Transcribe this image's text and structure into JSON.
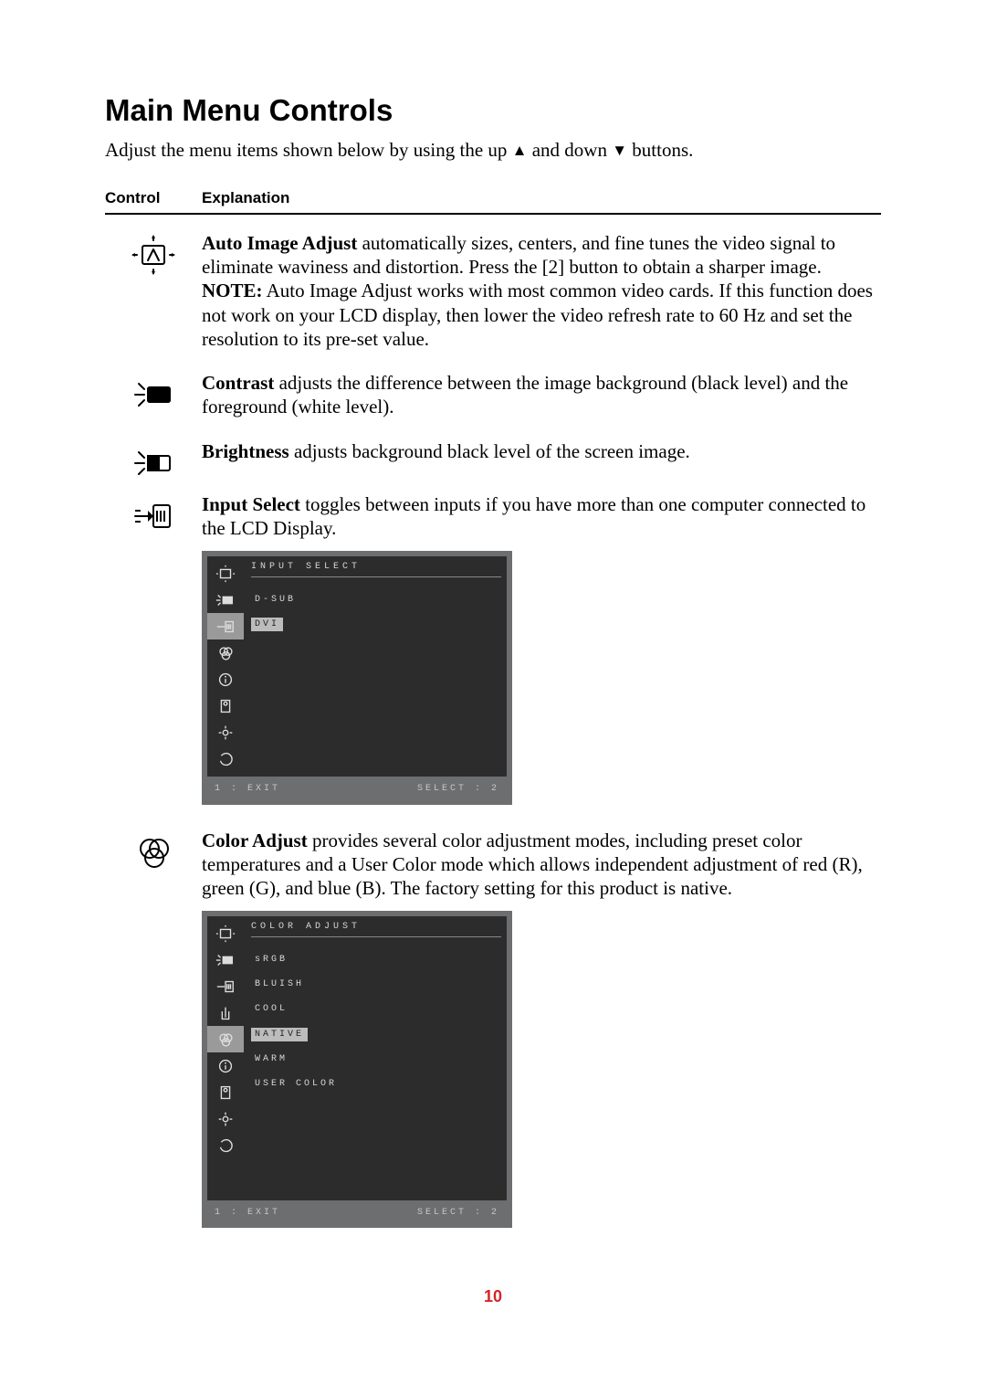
{
  "heading": "Main Menu Controls",
  "intro_before_up": "Adjust the menu items shown below by using the up ",
  "intro_between": " and down ",
  "intro_after": " buttons.",
  "headers": {
    "col1": "Control",
    "col2": "Explanation"
  },
  "page_number": "10",
  "colors": {
    "page_bg": "#ffffff",
    "text": "#000000",
    "page_num": "#d22626",
    "osd_outer": "#6d6e70",
    "osd_inner": "#2c2c2c",
    "osd_text": "#d8d8d8",
    "osd_active_icon_bg": "#9a9a9a",
    "osd_selected_bg": "#bcbcbc",
    "osd_selected_text": "#222222"
  },
  "sections": {
    "auto_image": {
      "label": "Auto Image Adjust",
      "text": " automatically sizes, centers, and fine tunes the video signal to eliminate waviness and distortion. Press the [2] button to obtain a sharper image.",
      "note_label": "NOTE:",
      "note_text": " Auto Image Adjust works with most common video cards. If this function does not work on your LCD display, then lower the video refresh rate to 60 Hz and set the resolution to its pre-set value."
    },
    "contrast": {
      "label": "Contrast",
      "text": " adjusts the difference between the image background  (black level) and the foreground (white level)."
    },
    "brightness": {
      "label": "Brightness",
      "text": " adjusts background black level of the screen image."
    },
    "input_select": {
      "label": "Input Select",
      "text": " toggles between inputs if you have more than one computer connected to the LCD Display."
    },
    "color_adjust": {
      "label": "Color Adjust",
      "text": " provides several color adjustment modes, including preset color temperatures and a User Color mode which allows independent adjustment of red (R), green (G), and blue (B). The factory setting for this product is native."
    }
  },
  "osd1": {
    "title": "INPUT SELECT",
    "active_index": 2,
    "items": [
      {
        "label": "D-SUB",
        "selected": false
      },
      {
        "label": "DVI",
        "selected": true
      }
    ],
    "footer_left": "1 : EXIT",
    "footer_right": "SELECT : 2"
  },
  "osd2": {
    "title": "COLOR ADJUST",
    "active_index": 4,
    "items": [
      {
        "label": "sRGB",
        "selected": false
      },
      {
        "label": "BLUISH",
        "selected": false
      },
      {
        "label": "COOL",
        "selected": false
      },
      {
        "label": "NATIVE",
        "selected": true
      },
      {
        "label": "WARM",
        "selected": false
      },
      {
        "label": "USER COLOR",
        "selected": false
      }
    ],
    "footer_left": "1 : EXIT",
    "footer_right": "SELECT : 2"
  }
}
